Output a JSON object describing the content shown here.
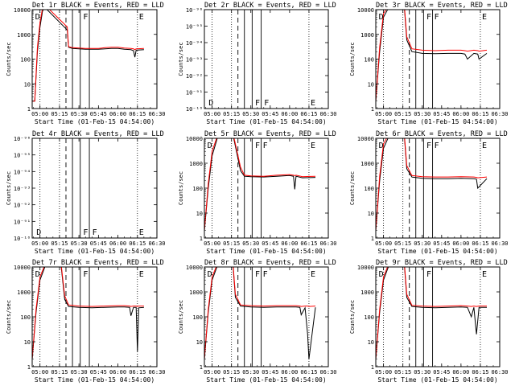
{
  "figure": {
    "xlabel": "Start Time (01-Feb-15 04:54:00)",
    "ylabel": "Counts/sec",
    "legend_text": "BLACK = Events, RED = LLD",
    "colors": {
      "events": "#000000",
      "lld": "#ff0000",
      "axes": "#000000"
    },
    "xticks": [
      "05:00",
      "05:15",
      "05:30",
      "05:45",
      "06:00",
      "06:15",
      "06:30"
    ]
  },
  "chart_data": [
    {
      "type": "line",
      "id": "det1r",
      "title": "Det 1r BLACK = Events, RED = LLD",
      "scale": "log",
      "ylim": [
        1,
        10000
      ],
      "yticks": [
        "1",
        "10",
        "100",
        "1000",
        "10000"
      ],
      "markers": [
        {
          "label": "D",
          "x": "04:55"
        },
        {
          "label": "F",
          "x": "05:32"
        },
        {
          "label": "E",
          "x": "06:15"
        }
      ],
      "series": [
        {
          "name": "Events",
          "x": [
            "04:54",
            "04:56",
            "04:58",
            "05:00",
            "05:02",
            "05:04",
            "05:21",
            "05:22",
            "05:25",
            "05:30",
            "05:35",
            "05:40",
            "05:45",
            "05:50",
            "05:55",
            "06:00",
            "06:05",
            "06:10",
            "06:12",
            "06:13",
            "06:14",
            "06:20"
          ],
          "y": [
            2,
            2,
            200,
            2000,
            9000,
            12000,
            1500,
            300,
            270,
            260,
            250,
            250,
            250,
            260,
            270,
            270,
            250,
            240,
            220,
            120,
            230,
            240
          ]
        },
        {
          "name": "LLD",
          "x": [
            "04:54",
            "04:56",
            "04:58",
            "05:00",
            "05:02",
            "05:04",
            "05:21",
            "05:22",
            "05:25",
            "05:30",
            "05:35",
            "05:40",
            "05:45",
            "05:50",
            "05:55",
            "06:00",
            "06:05",
            "06:10",
            "06:12",
            "06:13",
            "06:14",
            "06:20"
          ],
          "y": [
            2,
            2,
            300,
            3000,
            12000,
            15000,
            2000,
            320,
            290,
            280,
            270,
            270,
            270,
            290,
            300,
            300,
            280,
            270,
            260,
            240,
            260,
            270
          ]
        }
      ]
    },
    {
      "type": "line",
      "id": "det2r",
      "title": "Det 2r BLACK = Events, RED = LLD",
      "scale": "log",
      "ylim": [
        1e-10,
        1e-09
      ],
      "yticks": [
        "10⁻¹⁰",
        "10⁻⁹¹",
        "10⁻⁹²",
        "10⁻⁹³",
        "10⁻⁹⁴",
        "10⁻⁹⁵",
        "10⁻⁹⁶"
      ],
      "markers": [
        {
          "label": "D",
          "x": "04:56"
        },
        {
          "label": "F",
          "x": "05:32"
        },
        {
          "label": "F",
          "x": "05:39"
        },
        {
          "label": "E",
          "x": "06:15"
        }
      ],
      "series": []
    },
    {
      "type": "line",
      "id": "det3r",
      "title": "Det 3r BLACK = Events, RED = LLD",
      "scale": "log",
      "ylim": [
        1,
        10000
      ],
      "yticks": [
        "1",
        "10",
        "100",
        "1000",
        "10000"
      ],
      "markers": [
        {
          "label": "D",
          "x": "04:55"
        },
        {
          "label": "F",
          "x": "05:32"
        },
        {
          "label": "F",
          "x": "05:38"
        },
        {
          "label": "E",
          "x": "06:15"
        }
      ],
      "series": [
        {
          "name": "Events",
          "x": [
            "04:54",
            "04:57",
            "05:00",
            "05:05",
            "05:10",
            "05:16",
            "05:18",
            "05:22",
            "05:30",
            "05:40",
            "05:50",
            "06:00",
            "06:03",
            "06:05",
            "06:10",
            "06:13",
            "06:14",
            "06:20"
          ],
          "y": [
            2,
            200,
            5000,
            15000,
            12000,
            15000,
            600,
            200,
            170,
            165,
            170,
            170,
            160,
            100,
            170,
            160,
            100,
            170
          ]
        },
        {
          "name": "LLD",
          "x": [
            "04:54",
            "04:57",
            "05:00",
            "05:05",
            "05:10",
            "05:16",
            "05:18",
            "05:22",
            "05:30",
            "05:40",
            "05:50",
            "06:00",
            "06:03",
            "06:05",
            "06:10",
            "06:13",
            "06:14",
            "06:20"
          ],
          "y": [
            2,
            300,
            7000,
            18000,
            14000,
            18000,
            800,
            260,
            230,
            220,
            230,
            230,
            220,
            210,
            230,
            220,
            210,
            230
          ]
        }
      ]
    },
    {
      "type": "line",
      "id": "det4r",
      "title": "Det 4r BLACK = Events, RED = LLD",
      "scale": "log",
      "ylim": [
        1e-10,
        1e-09
      ],
      "yticks": [
        "10⁻¹⁰",
        "10⁻⁹¹",
        "10⁻⁹²",
        "10⁻⁹³",
        "10⁻⁹⁴",
        "10⁻⁹⁵",
        "10⁻⁹⁶"
      ],
      "markers": [
        {
          "label": "D",
          "x": "04:56"
        },
        {
          "label": "F",
          "x": "05:32"
        },
        {
          "label": "F",
          "x": "05:39"
        },
        {
          "label": "E",
          "x": "06:15"
        }
      ],
      "series": []
    },
    {
      "type": "line",
      "id": "det5r",
      "title": "Det 5r BLACK = Events, RED = LLD",
      "scale": "log",
      "ylim": [
        1,
        10000
      ],
      "yticks": [
        "1",
        "10",
        "100",
        "1000",
        "10000"
      ],
      "markers": [
        {
          "label": "D",
          "x": "04:55"
        },
        {
          "label": "F",
          "x": "05:32"
        },
        {
          "label": "F",
          "x": "05:38"
        },
        {
          "label": "E",
          "x": "06:15"
        }
      ],
      "series": [
        {
          "name": "Events",
          "x": [
            "04:54",
            "04:57",
            "05:00",
            "05:05",
            "05:10",
            "05:16",
            "05:22",
            "05:25",
            "05:30",
            "05:40",
            "05:50",
            "06:00",
            "06:03",
            "06:04",
            "06:05",
            "06:10",
            "06:20"
          ],
          "y": [
            2,
            100,
            2000,
            15000,
            12000,
            15000,
            500,
            300,
            290,
            280,
            300,
            320,
            300,
            90,
            300,
            260,
            270
          ]
        },
        {
          "name": "LLD",
          "x": [
            "04:54",
            "04:57",
            "05:00",
            "05:05",
            "05:10",
            "05:16",
            "05:22",
            "05:25",
            "05:30",
            "05:40",
            "05:50",
            "06:00",
            "06:03",
            "06:04",
            "06:05",
            "06:10",
            "06:20"
          ],
          "y": [
            2,
            150,
            3000,
            18000,
            14000,
            18000,
            700,
            330,
            310,
            300,
            330,
            350,
            330,
            320,
            330,
            290,
            300
          ]
        }
      ]
    },
    {
      "type": "line",
      "id": "det6r",
      "title": "Det 6r BLACK = Events, RED = LLD",
      "scale": "log",
      "ylim": [
        1,
        10000
      ],
      "yticks": [
        "1",
        "10",
        "100",
        "1000",
        "10000"
      ],
      "markers": [
        {
          "label": "D",
          "x": "04:55"
        },
        {
          "label": "F",
          "x": "05:32"
        },
        {
          "label": "F",
          "x": "05:38"
        },
        {
          "label": "E",
          "x": "06:15"
        }
      ],
      "series": [
        {
          "name": "Events",
          "x": [
            "04:54",
            "04:57",
            "05:00",
            "05:05",
            "05:10",
            "05:16",
            "05:18",
            "05:22",
            "05:30",
            "05:40",
            "05:50",
            "06:00",
            "06:10",
            "06:12",
            "06:13",
            "06:20"
          ],
          "y": [
            2,
            200,
            4000,
            15000,
            12000,
            15000,
            600,
            280,
            250,
            240,
            240,
            250,
            240,
            230,
            100,
            240
          ]
        },
        {
          "name": "LLD",
          "x": [
            "04:54",
            "04:57",
            "05:00",
            "05:05",
            "05:10",
            "05:16",
            "05:18",
            "05:22",
            "05:30",
            "05:40",
            "05:50",
            "06:00",
            "06:10",
            "06:12",
            "06:13",
            "06:20"
          ],
          "y": [
            2,
            300,
            6000,
            18000,
            14000,
            18000,
            800,
            320,
            290,
            280,
            280,
            290,
            280,
            270,
            260,
            280
          ]
        }
      ]
    },
    {
      "type": "line",
      "id": "det7r",
      "title": "Det 7r BLACK = Events, RED = LLD",
      "scale": "log",
      "ylim": [
        1,
        10000
      ],
      "yticks": [
        "1",
        "10",
        "100",
        "1000",
        "10000"
      ],
      "markers": [
        {
          "label": "D",
          "x": "04:55"
        },
        {
          "label": "F",
          "x": "05:32"
        },
        {
          "label": "E",
          "x": "06:15"
        }
      ],
      "series": [
        {
          "name": "Events",
          "x": [
            "04:54",
            "04:57",
            "05:00",
            "05:05",
            "05:10",
            "05:16",
            "05:19",
            "05:22",
            "05:30",
            "05:40",
            "05:50",
            "06:00",
            "06:05",
            "06:09",
            "06:10",
            "06:12",
            "06:14",
            "06:15",
            "06:16",
            "06:20"
          ],
          "y": [
            2,
            150,
            3000,
            15000,
            12000,
            15000,
            500,
            260,
            240,
            230,
            240,
            250,
            250,
            240,
            110,
            240,
            240,
            4,
            230,
            240
          ]
        },
        {
          "name": "LLD",
          "x": [
            "04:54",
            "04:57",
            "05:00",
            "05:05",
            "05:10",
            "05:16",
            "05:19",
            "05:22",
            "05:30",
            "05:40",
            "05:50",
            "06:00",
            "06:05",
            "06:09",
            "06:10",
            "06:12",
            "06:14",
            "06:15",
            "06:16",
            "06:20"
          ],
          "y": [
            2,
            200,
            4000,
            18000,
            14000,
            18000,
            700,
            300,
            270,
            260,
            270,
            280,
            280,
            270,
            260,
            270,
            270,
            260,
            270,
            270
          ]
        }
      ]
    },
    {
      "type": "line",
      "id": "det8r",
      "title": "Det 8r BLACK = Events, RED = LLD",
      "scale": "log",
      "ylim": [
        1,
        10000
      ],
      "yticks": [
        "1",
        "10",
        "100",
        "1000",
        "10000"
      ],
      "markers": [
        {
          "label": "D",
          "x": "04:55"
        },
        {
          "label": "F",
          "x": "05:32"
        },
        {
          "label": "F",
          "x": "05:38"
        },
        {
          "label": "E",
          "x": "06:15"
        }
      ],
      "series": [
        {
          "name": "Events",
          "x": [
            "04:54",
            "04:57",
            "05:00",
            "05:05",
            "05:10",
            "05:16",
            "05:18",
            "05:22",
            "05:30",
            "05:40",
            "05:50",
            "06:00",
            "06:05",
            "06:08",
            "06:09",
            "06:12",
            "06:14",
            "06:15",
            "06:20"
          ],
          "y": [
            2,
            150,
            3000,
            15000,
            12000,
            15000,
            600,
            270,
            250,
            240,
            250,
            250,
            250,
            240,
            120,
            230,
            20,
            2,
            240
          ]
        },
        {
          "name": "LLD",
          "x": [
            "04:54",
            "04:57",
            "05:00",
            "05:05",
            "05:10",
            "05:16",
            "05:18",
            "05:22",
            "05:30",
            "05:40",
            "05:50",
            "06:00",
            "06:05",
            "06:08",
            "06:09",
            "06:12",
            "06:14",
            "06:15",
            "06:20"
          ],
          "y": [
            2,
            200,
            4000,
            18000,
            14000,
            18000,
            800,
            300,
            280,
            270,
            280,
            280,
            280,
            270,
            260,
            270,
            270,
            260,
            270
          ]
        }
      ]
    },
    {
      "type": "line",
      "id": "det9r",
      "title": "Det 9r BLACK = Events, RED = LLD",
      "scale": "log",
      "ylim": [
        1,
        10000
      ],
      "yticks": [
        "1",
        "10",
        "100",
        "1000",
        "10000"
      ],
      "markers": [
        {
          "label": "D",
          "x": "04:55"
        },
        {
          "label": "F",
          "x": "05:32"
        },
        {
          "label": "E",
          "x": "06:15"
        }
      ],
      "series": [
        {
          "name": "Events",
          "x": [
            "04:54",
            "04:57",
            "05:00",
            "05:05",
            "05:10",
            "05:16",
            "05:18",
            "05:22",
            "05:30",
            "05:40",
            "05:50",
            "06:00",
            "06:05",
            "06:08",
            "06:10",
            "06:12",
            "06:14",
            "06:20"
          ],
          "y": [
            2,
            150,
            3000,
            15000,
            12000,
            15000,
            600,
            260,
            240,
            230,
            240,
            250,
            240,
            100,
            240,
            20,
            240,
            240
          ]
        },
        {
          "name": "LLD",
          "x": [
            "04:54",
            "04:57",
            "05:00",
            "05:05",
            "05:10",
            "05:16",
            "05:18",
            "05:22",
            "05:30",
            "05:40",
            "05:50",
            "06:00",
            "06:05",
            "06:08",
            "06:10",
            "06:12",
            "06:14",
            "06:20"
          ],
          "y": [
            2,
            200,
            4000,
            18000,
            14000,
            18000,
            800,
            290,
            270,
            260,
            270,
            280,
            270,
            260,
            270,
            260,
            270,
            270
          ]
        }
      ]
    }
  ]
}
